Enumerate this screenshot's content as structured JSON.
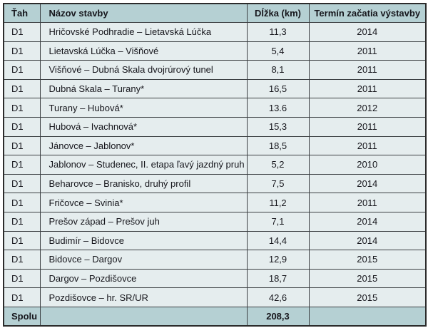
{
  "table": {
    "columns": [
      "Ťah",
      "Názov stavby",
      "Dĺžka (km)",
      "Termín začatia výstavby"
    ],
    "rows": [
      {
        "tah": "D1",
        "nazov": "Hričovské Podhradie – Lietavská Lúčka",
        "dlzka": "11,3",
        "termin": "2014"
      },
      {
        "tah": "D1",
        "nazov": "Lietavská Lúčka – Višňové",
        "dlzka": "5,4",
        "termin": "2011"
      },
      {
        "tah": "D1",
        "nazov": "Višňové – Dubná Skala dvojrúrový tunel",
        "dlzka": "8,1",
        "termin": "2011"
      },
      {
        "tah": "D1",
        "nazov": "Dubná Skala – Turany*",
        "dlzka": "16,5",
        "termin": "2011"
      },
      {
        "tah": "D1",
        "nazov": "Turany – Hubová*",
        "dlzka": "13.6",
        "termin": "2012"
      },
      {
        "tah": "D1",
        "nazov": "Hubová – Ivachnová*",
        "dlzka": "15,3",
        "termin": "2011"
      },
      {
        "tah": "D1",
        "nazov": "Jánovce – Jablonov*",
        "dlzka": "18,5",
        "termin": "2011"
      },
      {
        "tah": "D1",
        "nazov": "Jablonov – Studenec, II. etapa ľavý jazdný pruh",
        "dlzka": "5,2",
        "termin": "2010"
      },
      {
        "tah": "D1",
        "nazov": "Beharovce – Branisko, druhý profil",
        "dlzka": "7,5",
        "termin": "2014"
      },
      {
        "tah": "D1",
        "nazov": "Fričovce – Svinia*",
        "dlzka": "11,2",
        "termin": "2011"
      },
      {
        "tah": "D1",
        "nazov": "Prešov západ – Prešov juh",
        "dlzka": "7,1",
        "termin": "2014"
      },
      {
        "tah": "D1",
        "nazov": "Budimír – Bidovce",
        "dlzka": "14,4",
        "termin": "2014"
      },
      {
        "tah": "D1",
        "nazov": "Bidovce – Dargov",
        "dlzka": "12,9",
        "termin": "2015"
      },
      {
        "tah": "D1",
        "nazov": "Dargov – Pozdišovce",
        "dlzka": "18,7",
        "termin": "2015"
      },
      {
        "tah": "D1",
        "nazov": "Pozdišovce – hr. SR/UR",
        "dlzka": "42,6",
        "termin": "2015"
      }
    ],
    "footer": {
      "tah": "Spolu",
      "nazov": "",
      "dlzka": "208,3",
      "termin": ""
    }
  },
  "colors": {
    "header_bg": "#b5d0d3",
    "row_bg": "#e5edee",
    "footer_bg": "#b5d0d3",
    "border": "#3c4043",
    "outer_border": "#2b2b2b",
    "text": "#16161c"
  }
}
